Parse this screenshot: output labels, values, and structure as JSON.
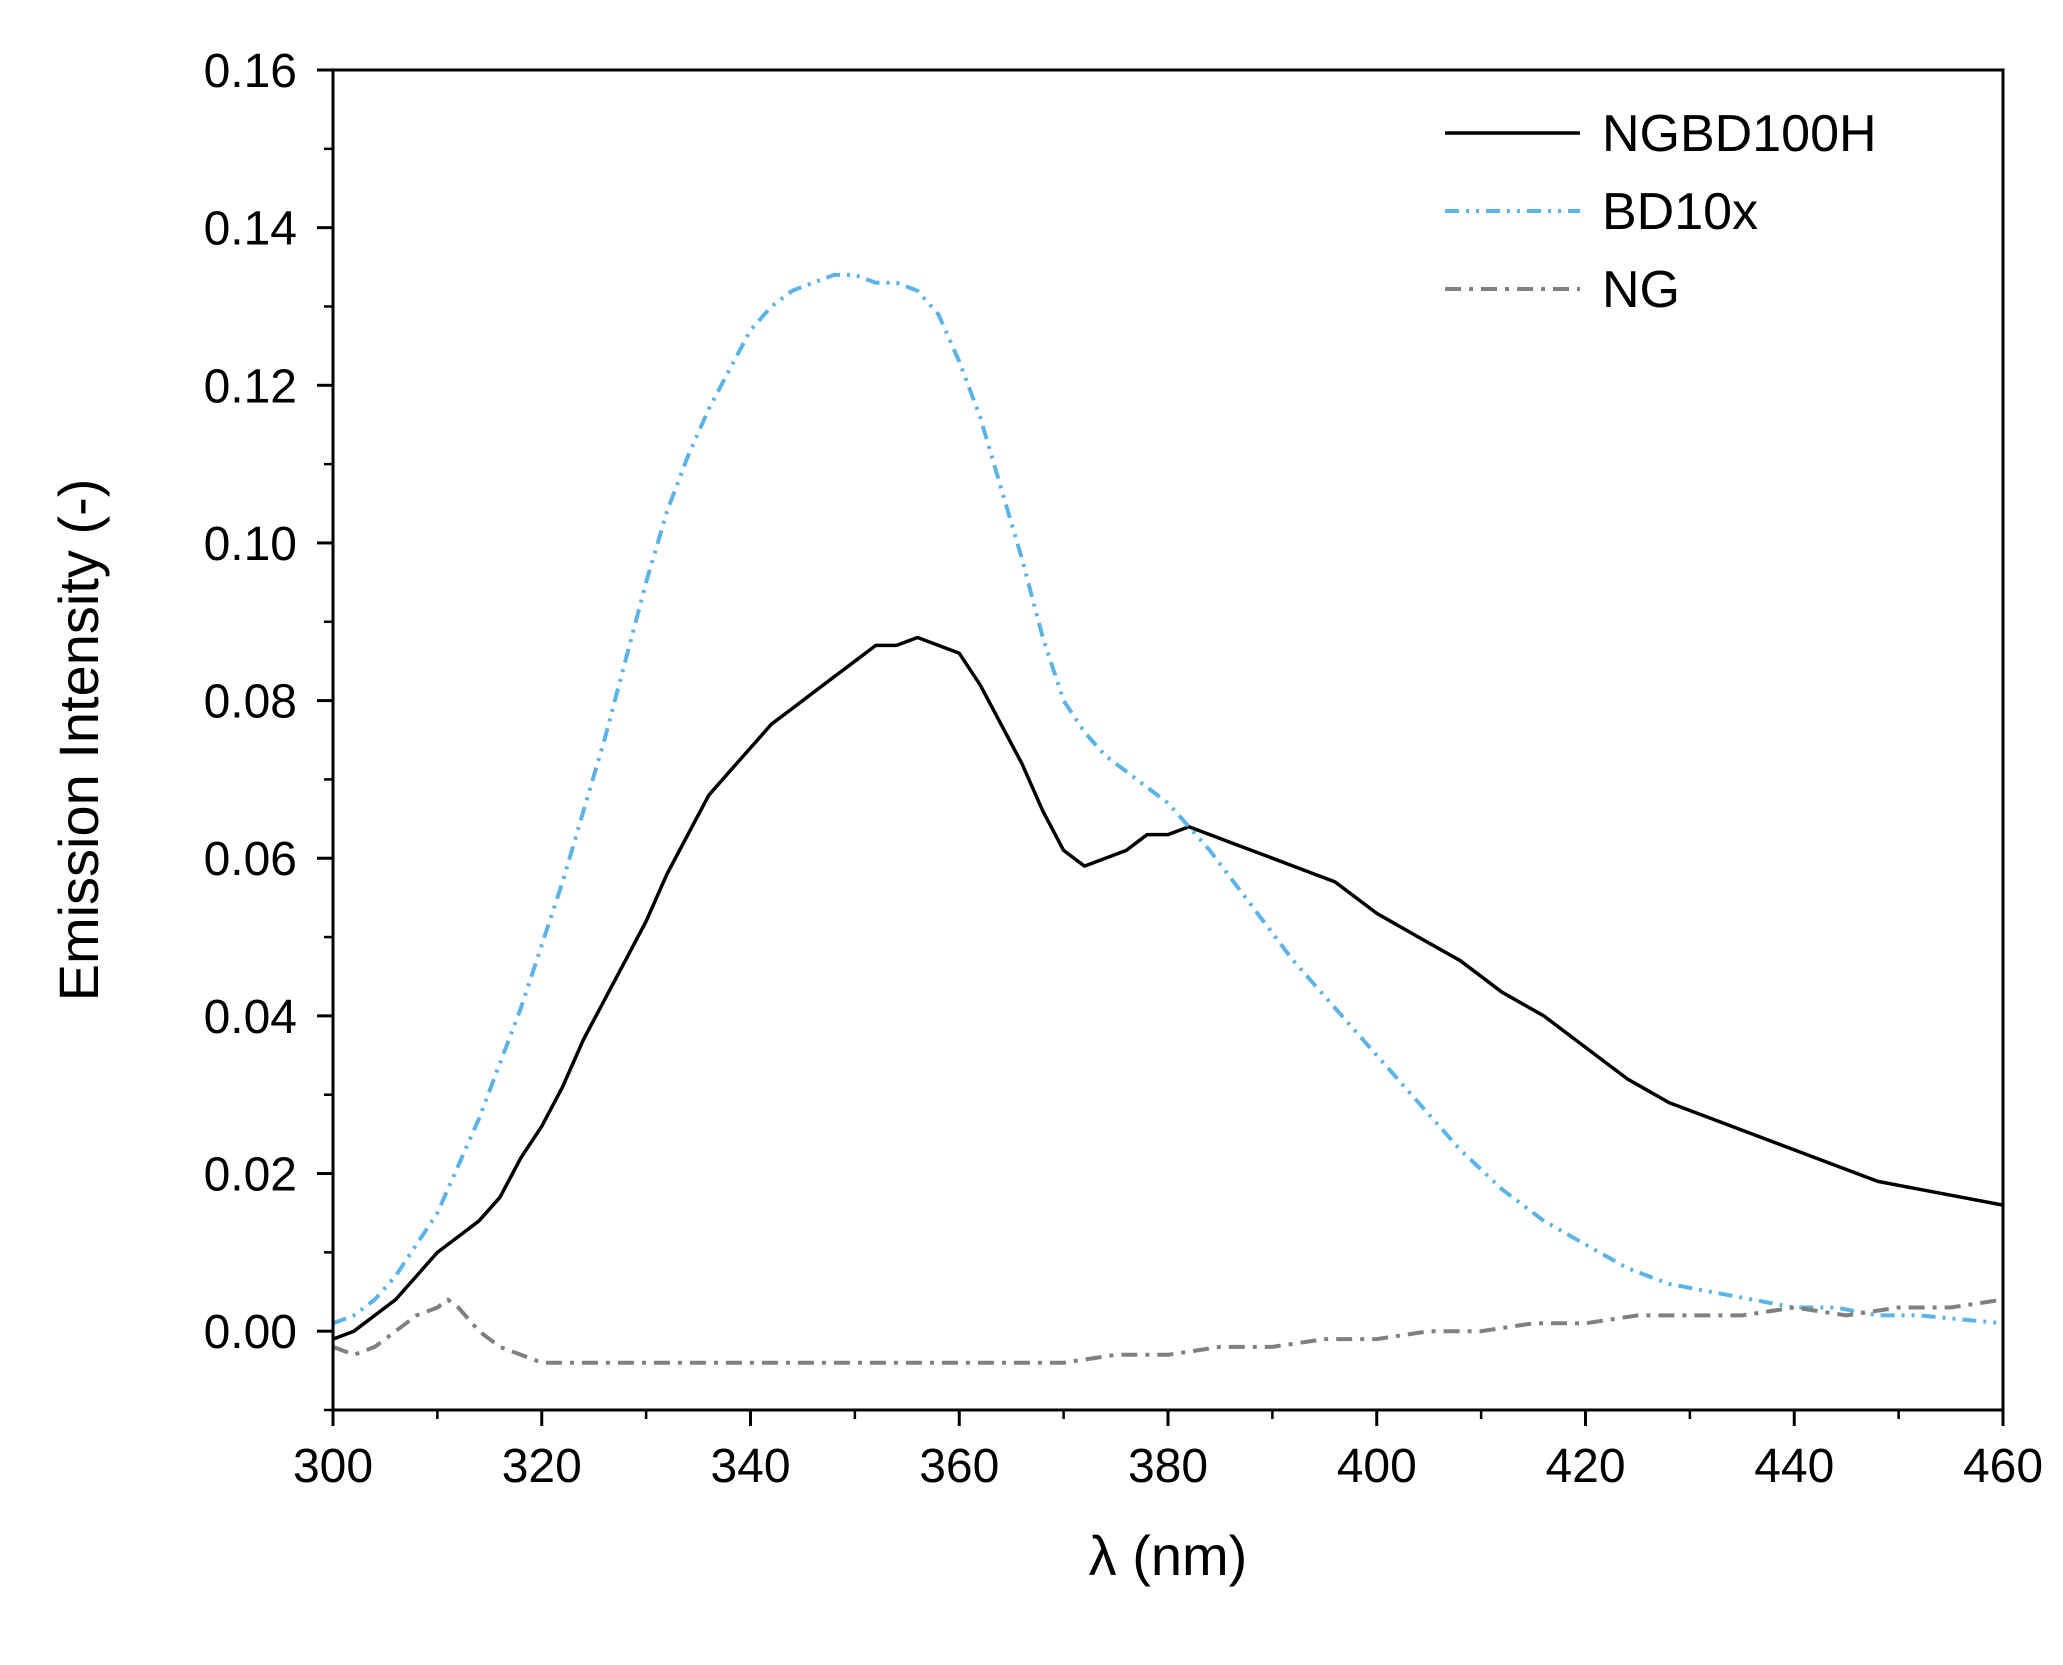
{
  "chart_data": {
    "type": "line",
    "title": "",
    "xlabel": "λ (nm)",
    "ylabel": "Emission Intensity (-)",
    "xlim": [
      300,
      460
    ],
    "ylim": [
      -0.01,
      0.16
    ],
    "xticks": [
      300,
      320,
      340,
      360,
      380,
      400,
      420,
      440,
      460
    ],
    "xtick_labels": [
      "300",
      "320",
      "340",
      "360",
      "380",
      "400",
      "420",
      "440",
      "460"
    ],
    "yticks": [
      0.0,
      0.02,
      0.04,
      0.06,
      0.08,
      0.1,
      0.12,
      0.14,
      0.16
    ],
    "ytick_labels": [
      "0.00",
      "0.02",
      "0.04",
      "0.06",
      "0.08",
      "0.10",
      "0.12",
      "0.14",
      "0.16"
    ],
    "grid": false,
    "legend_position": "top-right",
    "series": [
      {
        "name": "NGBD100H",
        "color": "#000000",
        "style": "solid",
        "x": [
          300,
          302,
          304,
          306,
          308,
          310,
          312,
          314,
          316,
          318,
          320,
          322,
          324,
          326,
          328,
          330,
          332,
          334,
          336,
          338,
          340,
          342,
          344,
          346,
          348,
          350,
          352,
          354,
          356,
          358,
          360,
          362,
          364,
          366,
          368,
          370,
          372,
          374,
          376,
          378,
          380,
          382,
          384,
          386,
          388,
          390,
          392,
          394,
          396,
          398,
          400,
          404,
          408,
          412,
          416,
          420,
          424,
          428,
          432,
          436,
          440,
          444,
          448,
          452,
          456,
          460
        ],
        "y": [
          -0.001,
          0.0,
          0.002,
          0.004,
          0.007,
          0.01,
          0.012,
          0.014,
          0.017,
          0.022,
          0.026,
          0.031,
          0.037,
          0.042,
          0.047,
          0.052,
          0.058,
          0.063,
          0.068,
          0.071,
          0.074,
          0.077,
          0.079,
          0.081,
          0.083,
          0.085,
          0.087,
          0.087,
          0.088,
          0.087,
          0.086,
          0.082,
          0.077,
          0.072,
          0.066,
          0.061,
          0.059,
          0.06,
          0.061,
          0.063,
          0.063,
          0.064,
          0.063,
          0.062,
          0.061,
          0.06,
          0.059,
          0.058,
          0.057,
          0.055,
          0.053,
          0.05,
          0.047,
          0.043,
          0.04,
          0.036,
          0.032,
          0.029,
          0.027,
          0.025,
          0.023,
          0.021,
          0.019,
          0.018,
          0.017,
          0.016
        ]
      },
      {
        "name": "BD10x",
        "color": "#5bb3e6",
        "style": "dash-dot-dot",
        "x": [
          300,
          302,
          304,
          306,
          308,
          310,
          312,
          314,
          316,
          318,
          320,
          322,
          324,
          326,
          328,
          330,
          332,
          334,
          336,
          338,
          340,
          342,
          344,
          346,
          348,
          350,
          352,
          354,
          356,
          358,
          360,
          362,
          364,
          366,
          368,
          370,
          372,
          374,
          376,
          378,
          380,
          384,
          388,
          392,
          396,
          400,
          404,
          408,
          412,
          416,
          420,
          424,
          428,
          432,
          436,
          440,
          444,
          448,
          452,
          456,
          460
        ],
        "y": [
          0.001,
          0.002,
          0.004,
          0.007,
          0.011,
          0.015,
          0.021,
          0.027,
          0.034,
          0.041,
          0.049,
          0.057,
          0.066,
          0.075,
          0.085,
          0.095,
          0.104,
          0.111,
          0.117,
          0.122,
          0.127,
          0.13,
          0.132,
          0.133,
          0.134,
          0.134,
          0.133,
          0.133,
          0.132,
          0.129,
          0.123,
          0.116,
          0.107,
          0.098,
          0.088,
          0.08,
          0.076,
          0.073,
          0.071,
          0.069,
          0.067,
          0.061,
          0.054,
          0.047,
          0.041,
          0.035,
          0.029,
          0.023,
          0.018,
          0.014,
          0.011,
          0.008,
          0.006,
          0.005,
          0.004,
          0.003,
          0.003,
          0.002,
          0.002,
          0.0015,
          0.001
        ]
      },
      {
        "name": "NG",
        "color": "#808080",
        "style": "dash-dot",
        "x": [
          300,
          302,
          304,
          306,
          308,
          310,
          311,
          312,
          314,
          316,
          318,
          320,
          325,
          330,
          335,
          340,
          345,
          350,
          355,
          360,
          365,
          370,
          375,
          380,
          385,
          390,
          395,
          400,
          405,
          410,
          415,
          420,
          425,
          430,
          435,
          440,
          445,
          450,
          455,
          460
        ],
        "y": [
          -0.002,
          -0.003,
          -0.002,
          0.0,
          0.002,
          0.003,
          0.004,
          0.003,
          0.0,
          -0.002,
          -0.003,
          -0.004,
          -0.004,
          -0.004,
          -0.004,
          -0.004,
          -0.004,
          -0.004,
          -0.004,
          -0.004,
          -0.004,
          -0.004,
          -0.003,
          -0.003,
          -0.002,
          -0.002,
          -0.001,
          -0.001,
          0.0,
          0.0,
          0.001,
          0.001,
          0.002,
          0.002,
          0.002,
          0.003,
          0.002,
          0.003,
          0.003,
          0.004
        ]
      }
    ]
  }
}
